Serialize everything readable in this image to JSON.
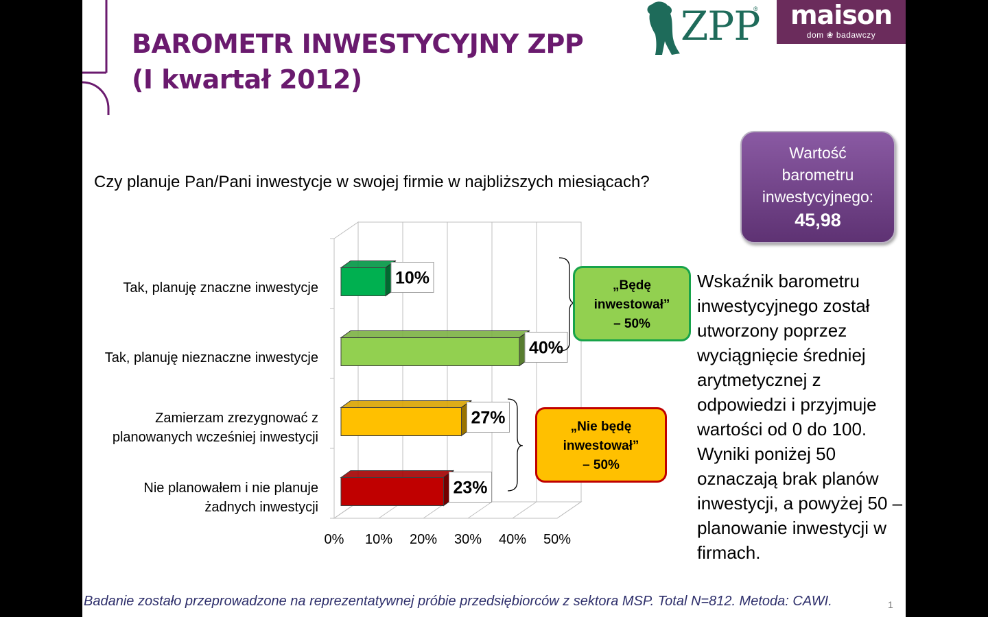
{
  "header": {
    "title_line1": "BAROMETR INWESTYCYJNY ZPP",
    "title_line2": "(I kwartał 2012)"
  },
  "logos": {
    "zpp": "ZPP",
    "zpp_reg": "®",
    "maison_name": "maison",
    "maison_tagline": "dom ❀ badawczy",
    "bear_icon": "bear-logo-icon"
  },
  "question": "Czy planuje Pan/Pani inwestycje w swojej firmie w najbliższych miesiącach?",
  "barometer": {
    "label_line1": "Wartość",
    "label_line2": "barometru",
    "label_line3": "inwestycyjnego:",
    "value": "45,98"
  },
  "callouts": {
    "will_invest": [
      "„Będę",
      "inwestował”",
      "– 50%"
    ],
    "will_not_invest": [
      "„Nie będę",
      "inwestował”",
      "– 50%"
    ]
  },
  "description": "Wskaźnik barometru inwestycyjnego został utworzony poprzez wyciągnięcie średniej arytmetycznej z odpowiedzi i przyjmuje wartości od 0 do 100. Wyniki poniżej 50 oznaczają brak planów inwestycji, a powyżej 50 – planowanie inwestycji w firmach.",
  "footnote": "Badanie zostało przeprowadzone na reprezentatywnej próbie przedsiębiorców z sektora MSP. Total N=812. Metoda: CAWI.",
  "page_number": "1",
  "colors": {
    "title": "#6a1a6e",
    "bar_green_dark": "#00b050",
    "bar_green_light": "#92d050",
    "bar_yellow": "#ffc000",
    "bar_red": "#c00000"
  },
  "chart_data": {
    "type": "bar",
    "orientation": "horizontal",
    "style": "3d",
    "categories": [
      [
        "Tak, planuję znaczne inwestycje"
      ],
      [
        "Tak, planuję nieznaczne inwestycje"
      ],
      [
        "Zamierzam zrezygnować z",
        "planowanych wcześniej inwestycji"
      ],
      [
        "Nie planowałem i nie planuje",
        "żadnych inwestycji"
      ]
    ],
    "values": [
      10,
      40,
      27,
      23
    ],
    "data_labels": [
      "10%",
      "40%",
      "27%",
      "23%"
    ],
    "colors": [
      "#00b050",
      "#92d050",
      "#ffc000",
      "#c00000"
    ],
    "xticks": [
      "0%",
      "10%",
      "20%",
      "30%",
      "40%",
      "50%"
    ],
    "xlim": [
      0,
      50
    ],
    "grid": true,
    "legend": "none"
  }
}
